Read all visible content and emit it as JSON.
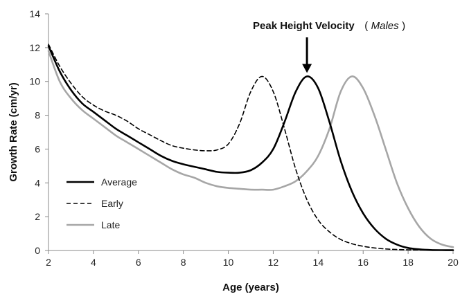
{
  "chart_data": {
    "type": "line",
    "title": "",
    "xlabel": "Age (years)",
    "ylabel": "Growth Rate (cm/yr)",
    "xlim": [
      2,
      20
    ],
    "ylim": [
      0,
      14
    ],
    "xticks": [
      2,
      4,
      6,
      8,
      10,
      12,
      14,
      16,
      18,
      20
    ],
    "yticks": [
      0,
      2,
      4,
      6,
      8,
      10,
      12,
      14
    ],
    "grid": false,
    "legend_position": "bottom-left",
    "annotation": {
      "bold_text": "Peak Height Velocity",
      "paren_open": "(",
      "italic_text": "Males",
      "paren_close": ")",
      "arrow_x": 13.5,
      "arrow_tip_y": 10.3
    },
    "series": [
      {
        "name": "Average",
        "color": "#000000",
        "style": "solid",
        "x": [
          2,
          2.5,
          3,
          3.5,
          4,
          4.5,
          5,
          5.5,
          6,
          6.5,
          7,
          7.5,
          8,
          8.5,
          9,
          9.5,
          10,
          10.5,
          11,
          11.5,
          12,
          12.5,
          13,
          13.5,
          14,
          14.5,
          15,
          15.5,
          16,
          16.5,
          17,
          17.5,
          18,
          18.5,
          19,
          19.5,
          20
        ],
        "y": [
          12.1,
          10.6,
          9.5,
          8.7,
          8.2,
          7.7,
          7.2,
          6.8,
          6.4,
          6.0,
          5.6,
          5.3,
          5.1,
          4.95,
          4.8,
          4.65,
          4.6,
          4.6,
          4.75,
          5.2,
          6.0,
          7.6,
          9.4,
          10.3,
          9.6,
          7.6,
          5.3,
          3.5,
          2.2,
          1.3,
          0.7,
          0.35,
          0.15,
          0.07,
          0.03,
          0.02,
          0.02
        ]
      },
      {
        "name": "Early",
        "color": "#000000",
        "style": "dashed",
        "x": [
          2,
          2.5,
          3,
          3.5,
          4,
          4.5,
          5,
          5.5,
          6,
          6.5,
          7,
          7.5,
          8,
          8.5,
          9,
          9.5,
          10,
          10.5,
          11,
          11.5,
          12,
          12.5,
          13,
          13.5,
          14,
          14.5,
          15,
          15.5,
          16,
          16.5,
          17,
          17.5,
          18,
          18.5,
          19,
          19.5,
          20
        ],
        "y": [
          12.2,
          10.9,
          9.9,
          9.1,
          8.6,
          8.25,
          8.0,
          7.65,
          7.2,
          6.85,
          6.5,
          6.2,
          6.05,
          5.95,
          5.9,
          5.95,
          6.3,
          7.5,
          9.4,
          10.3,
          9.4,
          7.2,
          4.8,
          3.0,
          1.8,
          1.1,
          0.65,
          0.4,
          0.25,
          0.15,
          0.09,
          0.06,
          0.04,
          0.03,
          0.02,
          0.02,
          0.02
        ]
      },
      {
        "name": "Late",
        "color": "#a6a6a6",
        "style": "solid",
        "x": [
          2,
          2.5,
          3,
          3.5,
          4,
          4.5,
          5,
          5.5,
          6,
          6.5,
          7,
          7.5,
          8,
          8.5,
          9,
          9.5,
          10,
          10.5,
          11,
          11.5,
          12,
          12.5,
          13,
          13.5,
          14,
          14.5,
          15,
          15.5,
          16,
          16.5,
          17,
          17.5,
          18,
          18.5,
          19,
          19.5,
          20
        ],
        "y": [
          11.8,
          10.0,
          9.0,
          8.3,
          7.8,
          7.3,
          6.8,
          6.4,
          6.0,
          5.6,
          5.2,
          4.8,
          4.5,
          4.3,
          4.0,
          3.8,
          3.7,
          3.65,
          3.6,
          3.6,
          3.6,
          3.8,
          4.1,
          4.7,
          5.6,
          7.2,
          9.4,
          10.3,
          9.6,
          8.0,
          6.0,
          4.0,
          2.5,
          1.4,
          0.7,
          0.35,
          0.2
        ]
      }
    ]
  }
}
